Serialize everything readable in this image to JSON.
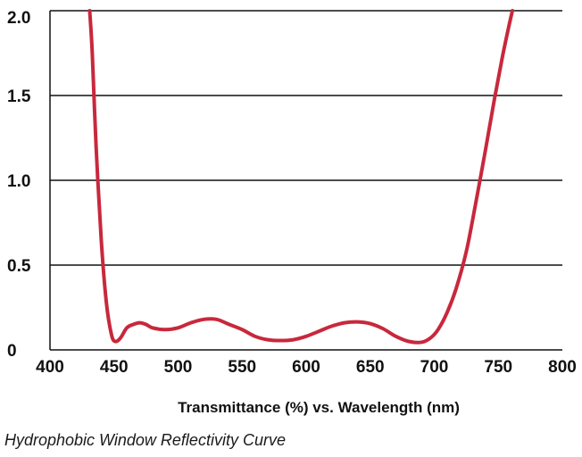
{
  "caption": "Hydrophobic Window Reflectivity Curve",
  "chart_data": {
    "type": "line",
    "title": "",
    "xlabel": "Transmittance (%) vs. Wavelength (nm)",
    "ylabel": "",
    "xlim": [
      400,
      800
    ],
    "ylim": [
      0,
      2.0
    ],
    "x_ticks": [
      400,
      450,
      500,
      550,
      600,
      650,
      700,
      750,
      800
    ],
    "x_tick_labels": [
      "400",
      "450",
      "500",
      "550",
      "600",
      "650",
      "700",
      "750",
      "800"
    ],
    "y_ticks": [
      0,
      0.5,
      1.0,
      1.5,
      2.0
    ],
    "y_tick_labels": [
      "0",
      "0.5",
      "1.0",
      "1.5",
      "2.0"
    ],
    "grid": "horizontal",
    "line_color": "#c8283c",
    "series": [
      {
        "x": [
          431,
          433,
          436,
          440,
          444,
          448,
          451,
          455,
          460,
          465,
          470,
          475,
          480,
          490,
          500,
          510,
          520,
          530,
          540,
          550,
          560,
          570,
          580,
          590,
          600,
          610,
          620,
          630,
          640,
          650,
          660,
          670,
          680,
          690,
          697,
          703,
          710,
          717,
          725,
          732,
          740,
          747,
          753,
          758,
          761
        ],
        "y": [
          2.0,
          1.75,
          1.2,
          0.65,
          0.28,
          0.09,
          0.05,
          0.07,
          0.13,
          0.15,
          0.16,
          0.15,
          0.13,
          0.12,
          0.13,
          0.16,
          0.18,
          0.18,
          0.15,
          0.12,
          0.08,
          0.06,
          0.055,
          0.06,
          0.08,
          0.11,
          0.14,
          0.16,
          0.165,
          0.155,
          0.125,
          0.08,
          0.05,
          0.045,
          0.07,
          0.12,
          0.22,
          0.36,
          0.58,
          0.85,
          1.18,
          1.48,
          1.72,
          1.9,
          2.0
        ]
      }
    ]
  }
}
